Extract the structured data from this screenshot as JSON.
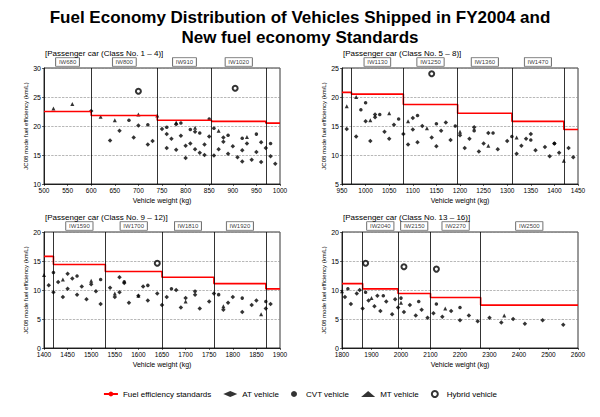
{
  "title": "Fuel Economy Distribution of Vehicles Shipped in FY2004 and\nNew fuel economy Standards",
  "legend": "bottom",
  "chart_data": [
    {
      "type": "scatter",
      "title": "[Passenger car (Class No. 1 – 4)]",
      "x_label": "Vehicle weight (kg)",
      "y_label": "JC08 mode fuel efficiency (km/L)",
      "xlim": [
        500,
        1000
      ],
      "xticks": [
        500,
        550,
        600,
        650,
        700,
        750,
        800,
        850,
        900,
        950,
        1000
      ],
      "ylim": [
        10,
        30
      ],
      "yticks": [
        10,
        15,
        20,
        25,
        30
      ],
      "grid": "y",
      "classes": [
        {
          "label": "IW680",
          "from": 500,
          "to": 600
        },
        {
          "label": "IW800",
          "from": 600,
          "to": 740
        },
        {
          "label": "IW910",
          "from": 740,
          "to": 855
        },
        {
          "label": "IW1020",
          "from": 855,
          "to": 970
        }
      ],
      "series": [
        {
          "name": "Fuel efficiency standards",
          "type": "line",
          "color": "#ff0000",
          "line_style": "solid",
          "segments": [
            {
              "from": 500,
              "to": 600,
              "value": 22.5
            },
            {
              "from": 600,
              "to": 740,
              "value": 21.8
            },
            {
              "from": 740,
              "to": 855,
              "value": 21.0
            },
            {
              "from": 855,
              "to": 970,
              "value": 20.8
            },
            {
              "from": 970,
              "to": 1000,
              "value": 20.5
            }
          ]
        },
        {
          "name": "AT vehicle",
          "type": "scatter",
          "color": "#000000",
          "marker": "diamond",
          "x": [
            600,
            640,
            660,
            690,
            700,
            720,
            730,
            750,
            760,
            770,
            780,
            790,
            800,
            810,
            820,
            830,
            840,
            850,
            860,
            870,
            880,
            890,
            900,
            910,
            920,
            930,
            940,
            950,
            960,
            970,
            980,
            990,
            760,
            800,
            840,
            880,
            920,
            960,
            780,
            820
          ],
          "values": [
            22.6,
            17.5,
            19.2,
            18.0,
            20.1,
            16.8,
            17.4,
            19.5,
            16.2,
            17.8,
            15.9,
            18.3,
            16.6,
            17.0,
            19.0,
            15.4,
            16.8,
            18.2,
            14.9,
            16.0,
            17.3,
            15.2,
            16.5,
            14.6,
            15.8,
            17.0,
            14.2,
            15.5,
            13.8,
            16.2,
            14.8,
            13.5,
            18.6,
            14.5,
            15.0,
            18.0,
            13.9,
            17.2,
            20.3,
            16.0
          ]
        },
        {
          "name": "CVT vehicle",
          "type": "scatter",
          "color": "#000000",
          "marker": "circle",
          "x": [
            680,
            720,
            760,
            790,
            810,
            830,
            860,
            890,
            920,
            950,
            980,
            850
          ],
          "values": [
            21.0,
            20.2,
            19.8,
            20.5,
            19.4,
            18.8,
            19.6,
            18.4,
            17.9,
            18.6,
            17.0,
            21.2
          ]
        },
        {
          "name": "MT vehicle",
          "type": "scatter",
          "color": "#000000",
          "marker": "triangle",
          "x": [
            520,
            560,
            620,
            650,
            700,
            740,
            780,
            820,
            870,
            930
          ],
          "values": [
            23.0,
            23.8,
            21.6,
            21.0,
            22.0,
            21.8,
            20.6,
            19.7,
            19.2,
            18.1
          ]
        },
        {
          "name": "Hybrid vehicle",
          "type": "scatter",
          "color": "#000000",
          "marker": "ring",
          "x": [
            700,
            905
          ],
          "values": [
            26.0,
            26.5
          ]
        }
      ]
    },
    {
      "type": "scatter",
      "title": "[Passenger car (Class No. 5 – 8)]",
      "x_label": "Vehicle weight (kg)",
      "y_label": "JC08 mode fuel efficiency (km/L)",
      "xlim": [
        950,
        1450
      ],
      "xticks": [
        950,
        1000,
        1050,
        1100,
        1150,
        1200,
        1250,
        1300,
        1350,
        1400,
        1450
      ],
      "ylim": [
        5,
        25
      ],
      "yticks": [
        5,
        10,
        15,
        20,
        25
      ],
      "grid": "y",
      "classes": [
        {
          "label": "IW1130",
          "from": 970,
          "to": 1080
        },
        {
          "label": "IW1250",
          "from": 1080,
          "to": 1195
        },
        {
          "label": "IW1360",
          "from": 1195,
          "to": 1310
        },
        {
          "label": "IW1470",
          "from": 1310,
          "to": 1420
        }
      ],
      "series": [
        {
          "name": "Fuel efficiency standards",
          "type": "line",
          "color": "#ff0000",
          "line_style": "solid",
          "segments": [
            {
              "from": 950,
              "to": 970,
              "value": 20.8
            },
            {
              "from": 970,
              "to": 1080,
              "value": 20.5
            },
            {
              "from": 1080,
              "to": 1195,
              "value": 18.7
            },
            {
              "from": 1195,
              "to": 1310,
              "value": 17.2
            },
            {
              "from": 1310,
              "to": 1420,
              "value": 15.8
            },
            {
              "from": 1420,
              "to": 1450,
              "value": 14.4
            }
          ]
        },
        {
          "name": "AT vehicle",
          "type": "scatter",
          "color": "#000000",
          "marker": "diamond",
          "x": [
            960,
            980,
            1000,
            1010,
            1020,
            1040,
            1050,
            1060,
            1080,
            1090,
            1100,
            1110,
            1120,
            1140,
            1150,
            1160,
            1180,
            1200,
            1210,
            1220,
            1240,
            1250,
            1260,
            1280,
            1300,
            1320,
            1330,
            1340,
            1360,
            1380,
            1390,
            1400,
            1410,
            1430,
            1440,
            1020,
            1100,
            1170,
            1230,
            1350
          ],
          "values": [
            14.5,
            13.2,
            15.8,
            12.4,
            16.5,
            14.0,
            12.8,
            15.2,
            13.6,
            11.8,
            14.4,
            12.2,
            15.0,
            13.0,
            11.5,
            14.2,
            12.6,
            13.4,
            11.2,
            12.8,
            10.6,
            12.0,
            13.8,
            11.0,
            12.4,
            10.2,
            11.6,
            12.8,
            10.8,
            11.4,
            9.8,
            12.0,
            10.4,
            11.2,
            9.6,
            17.0,
            16.4,
            15.6,
            14.8,
            13.6
          ]
        },
        {
          "name": "CVT vehicle",
          "type": "scatter",
          "color": "#000000",
          "marker": "circle",
          "x": [
            990,
            1030,
            1070,
            1110,
            1150,
            1190,
            1230,
            1270,
            1310,
            1350,
            1400,
            1000
          ],
          "values": [
            17.8,
            17.0,
            16.2,
            16.8,
            15.4,
            15.0,
            14.2,
            13.8,
            13.2,
            12.6,
            12.0,
            19.0
          ]
        },
        {
          "name": "MT vehicle",
          "type": "scatter",
          "color": "#000000",
          "marker": "triangle",
          "x": [
            960,
            980,
            1010,
            1050,
            1090,
            1130,
            1200,
            1260,
            1320,
            1420
          ],
          "values": [
            18.4,
            20.0,
            16.0,
            17.2,
            15.8,
            14.6,
            14.0,
            11.6,
            13.0,
            9.0
          ]
        },
        {
          "name": "Hybrid vehicle",
          "type": "scatter",
          "color": "#000000",
          "marker": "ring",
          "x": [
            1140
          ],
          "values": [
            24.0
          ]
        }
      ]
    },
    {
      "type": "scatter",
      "title": "[Passenger car (Class No. 9 – 12)]",
      "x_label": "Vehicle weight (kg)",
      "y_label": "JC08 mode fuel efficiency (km/L)",
      "xlim": [
        1400,
        1900
      ],
      "xticks": [
        1400,
        1450,
        1500,
        1550,
        1600,
        1650,
        1700,
        1750,
        1800,
        1850,
        1900
      ],
      "ylim": [
        0,
        20
      ],
      "yticks": [
        0,
        5,
        10,
        15,
        20
      ],
      "grid": "y",
      "classes": [
        {
          "label": "IW1590",
          "from": 1420,
          "to": 1530
        },
        {
          "label": "IW1700",
          "from": 1530,
          "to": 1650
        },
        {
          "label": "IW1810",
          "from": 1650,
          "to": 1760
        },
        {
          "label": "IW1920",
          "from": 1760,
          "to": 1870
        }
      ],
      "series": [
        {
          "name": "Fuel efficiency standards",
          "type": "line",
          "color": "#ff0000",
          "line_style": "solid",
          "segments": [
            {
              "from": 1400,
              "to": 1420,
              "value": 15.8
            },
            {
              "from": 1420,
              "to": 1530,
              "value": 14.4
            },
            {
              "from": 1530,
              "to": 1650,
              "value": 13.2
            },
            {
              "from": 1650,
              "to": 1760,
              "value": 12.2
            },
            {
              "from": 1760,
              "to": 1870,
              "value": 11.1
            },
            {
              "from": 1870,
              "to": 1900,
              "value": 10.2
            }
          ]
        },
        {
          "name": "AT vehicle",
          "type": "scatter",
          "color": "#000000",
          "marker": "diamond",
          "x": [
            1410,
            1420,
            1430,
            1440,
            1450,
            1460,
            1470,
            1480,
            1490,
            1500,
            1510,
            1520,
            1540,
            1550,
            1560,
            1570,
            1580,
            1600,
            1610,
            1620,
            1640,
            1650,
            1660,
            1680,
            1690,
            1700,
            1720,
            1730,
            1750,
            1760,
            1780,
            1790,
            1800,
            1820,
            1840,
            1850,
            1870,
            1880,
            1450,
            1560
          ],
          "values": [
            10.8,
            9.6,
            11.4,
            8.8,
            10.2,
            12.0,
            9.2,
            10.6,
            8.4,
            11.0,
            9.8,
            7.6,
            10.4,
            8.8,
            9.6,
            11.2,
            7.8,
            9.0,
            10.6,
            8.2,
            9.4,
            7.4,
            8.8,
            10.0,
            7.0,
            8.6,
            9.2,
            6.8,
            8.0,
            9.4,
            6.6,
            7.8,
            8.8,
            6.2,
            7.4,
            8.2,
            6.8,
            7.6,
            12.8,
            12.2
          ]
        },
        {
          "name": "CVT vehicle",
          "type": "scatter",
          "color": "#000000",
          "marker": "circle",
          "x": [
            1420,
            1470,
            1520,
            1570,
            1620,
            1670,
            1720,
            1770,
            1820,
            1870
          ],
          "values": [
            13.0,
            12.4,
            11.8,
            11.4,
            10.8,
            10.2,
            9.8,
            9.2,
            8.6,
            8.0
          ]
        },
        {
          "name": "MT vehicle",
          "type": "scatter",
          "color": "#000000",
          "marker": "triangle",
          "x": [
            1400,
            1440,
            1500,
            1550,
            1600,
            1700,
            1780,
            1860
          ],
          "values": [
            12.6,
            11.8,
            11.6,
            9.4,
            9.0,
            8.0,
            7.2,
            5.8
          ]
        },
        {
          "name": "Hybrid vehicle",
          "type": "scatter",
          "color": "#000000",
          "marker": "ring",
          "x": [
            1640
          ],
          "values": [
            14.6
          ]
        }
      ]
    },
    {
      "type": "scatter",
      "title": "[Passenger car (Class No. 13 – 16)]",
      "x_label": "Vehicle weight (kg)",
      "y_label": "JC08 mode fuel efficiency (km/L)",
      "xlim": [
        1800,
        2600
      ],
      "xticks": [
        1800,
        1900,
        2000,
        2100,
        2200,
        2300,
        2400,
        2500,
        2600
      ],
      "ylim": [
        0,
        20
      ],
      "yticks": [
        0,
        5,
        10,
        15,
        20
      ],
      "grid": "y",
      "classes": [
        {
          "label": "IW2040",
          "from": 1870,
          "to": 1990
        },
        {
          "label": "IW2150",
          "from": 1990,
          "to": 2100
        },
        {
          "label": "IW2270",
          "from": 2100,
          "to": 2270
        },
        {
          "label": "IW2500",
          "from": 2270,
          "to": 2600
        }
      ],
      "series": [
        {
          "name": "Fuel efficiency standards",
          "type": "line",
          "color": "#ff0000",
          "line_style": "solid",
          "segments": [
            {
              "from": 1800,
              "to": 1870,
              "value": 11.1
            },
            {
              "from": 1870,
              "to": 1990,
              "value": 10.2
            },
            {
              "from": 1990,
              "to": 2100,
              "value": 9.4
            },
            {
              "from": 2100,
              "to": 2270,
              "value": 8.7
            },
            {
              "from": 2270,
              "to": 2600,
              "value": 7.4
            }
          ]
        },
        {
          "name": "AT vehicle",
          "type": "scatter",
          "color": "#000000",
          "marker": "diamond",
          "x": [
            1810,
            1830,
            1850,
            1870,
            1890,
            1910,
            1930,
            1950,
            1970,
            1990,
            2010,
            2030,
            2050,
            2070,
            2090,
            2110,
            2140,
            2170,
            2200,
            2230,
            2260,
            2300,
            2340,
            2380,
            2420,
            2480,
            2550,
            1860,
            1920,
            1980
          ],
          "values": [
            8.8,
            7.6,
            9.4,
            6.8,
            8.2,
            7.2,
            6.4,
            8.0,
            5.8,
            7.0,
            6.2,
            7.4,
            5.6,
            6.6,
            5.2,
            6.0,
            5.4,
            6.4,
            4.8,
            5.6,
            4.6,
            5.2,
            4.4,
            5.0,
            4.2,
            4.8,
            4.0,
            10.0,
            9.0,
            8.4
          ]
        },
        {
          "name": "CVT vehicle",
          "type": "scatter",
          "color": "#000000",
          "marker": "circle",
          "x": [
            1820,
            1880,
            1940,
            2000,
            2060,
            2120,
            2200
          ],
          "values": [
            10.2,
            9.6,
            9.0,
            8.6,
            8.0,
            7.6,
            7.0
          ]
        },
        {
          "name": "MT vehicle",
          "type": "scatter",
          "color": "#000000",
          "marker": "triangle",
          "x": [
            1800,
            1900,
            2000,
            2150,
            2350
          ],
          "values": [
            9.8,
            8.6,
            7.8,
            6.8,
            5.6
          ]
        },
        {
          "name": "Hybrid vehicle",
          "type": "scatter",
          "color": "#000000",
          "marker": "ring",
          "x": [
            1880,
            2010,
            2120
          ],
          "values": [
            14.6,
            14.0,
            13.6
          ]
        }
      ]
    }
  ]
}
